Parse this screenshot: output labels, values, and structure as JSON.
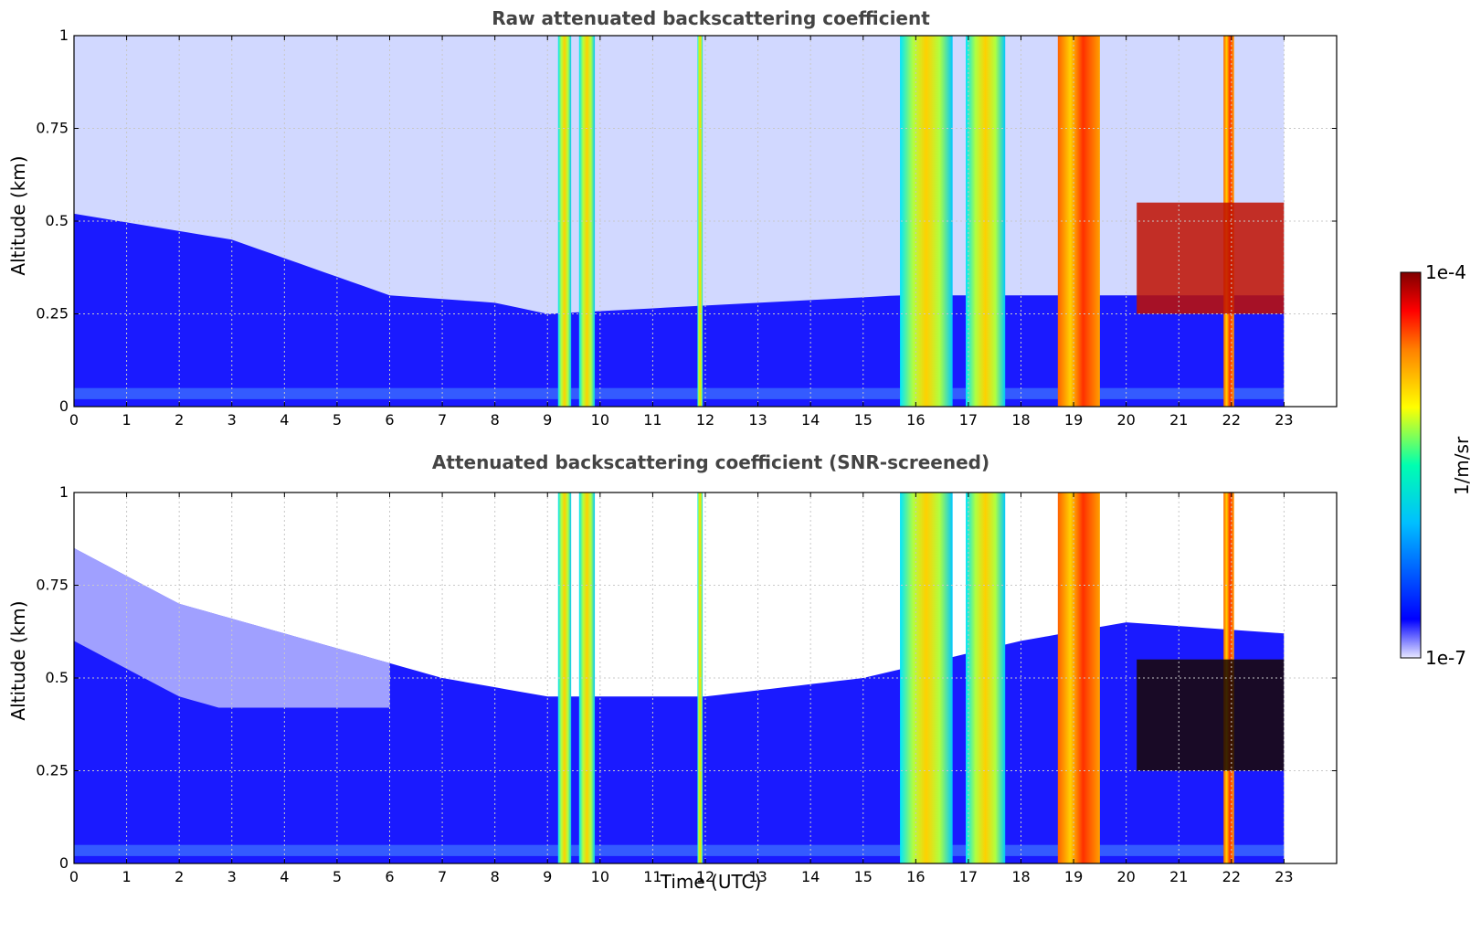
{
  "chart_data": [
    {
      "type": "heatmap",
      "title": "Raw attenuated backscattering coefficient",
      "ylabel": "Altitude (km)",
      "xlabel": "",
      "x_ticks": [
        "0",
        "1",
        "2",
        "3",
        "4",
        "5",
        "6",
        "7",
        "8",
        "9",
        "10",
        "11",
        "12",
        "13",
        "14",
        "15",
        "16",
        "17",
        "18",
        "19",
        "20",
        "21",
        "22",
        "23"
      ],
      "xlim": [
        0,
        24
      ],
      "y_ticks": [
        "0",
        "0.25",
        "0.5",
        "0.75",
        "1"
      ],
      "ylim": [
        0,
        1
      ],
      "data_end_hour": 23,
      "grid": true,
      "boundary_layer_top_km": [
        {
          "t": 0,
          "z": 0.52
        },
        {
          "t": 3,
          "z": 0.45
        },
        {
          "t": 6,
          "z": 0.3
        },
        {
          "t": 8,
          "z": 0.28
        },
        {
          "t": 9,
          "z": 0.25
        },
        {
          "t": 15.7,
          "z": 0.3
        }
      ],
      "cloud_bands": [
        {
          "t0": 9.2,
          "t1": 9.45,
          "level": "high"
        },
        {
          "t0": 9.6,
          "t1": 9.9,
          "level": "high"
        },
        {
          "t0": 11.85,
          "t1": 11.95,
          "level": "high"
        },
        {
          "t0": 15.7,
          "t1": 16.7,
          "level": "high"
        },
        {
          "t0": 16.95,
          "t1": 17.7,
          "level": "high"
        },
        {
          "t0": 18.7,
          "t1": 19.5,
          "level": "very high"
        },
        {
          "t0": 21.85,
          "t1": 22.05,
          "level": "very high"
        }
      ],
      "aerosol_layer": {
        "t0": 20.2,
        "t1": 23,
        "z0": 0.25,
        "z1": 0.55,
        "level": "very high"
      }
    },
    {
      "type": "heatmap",
      "title": "Attenuated backscattering coefficient (SNR-screened)",
      "ylabel": "Altitude (km)",
      "xlabel": "Time (UTC)",
      "x_ticks": [
        "0",
        "1",
        "2",
        "3",
        "4",
        "5",
        "6",
        "7",
        "8",
        "9",
        "10",
        "11",
        "12",
        "13",
        "14",
        "15",
        "16",
        "17",
        "18",
        "19",
        "20",
        "21",
        "22",
        "23"
      ],
      "xlim": [
        0,
        24
      ],
      "y_ticks": [
        "0",
        "0.25",
        "0.5",
        "0.75",
        "1"
      ],
      "ylim": [
        0,
        1
      ],
      "data_end_hour": 23,
      "grid": true,
      "screened_top_km": [
        {
          "t": 0,
          "z": 0.85
        },
        {
          "t": 2,
          "z": 0.7
        },
        {
          "t": 4,
          "z": 0.62
        },
        {
          "t": 7,
          "z": 0.5
        },
        {
          "t": 9,
          "z": 0.45
        },
        {
          "t": 12,
          "z": 0.45
        },
        {
          "t": 15,
          "z": 0.5
        },
        {
          "t": 18,
          "z": 0.6
        },
        {
          "t": 20,
          "z": 0.65
        },
        {
          "t": 23,
          "z": 0.62
        }
      ],
      "cloud_bands": [
        {
          "t0": 9.2,
          "t1": 9.45,
          "level": "high"
        },
        {
          "t0": 9.6,
          "t1": 9.9,
          "level": "high"
        },
        {
          "t0": 11.85,
          "t1": 11.95,
          "level": "high"
        },
        {
          "t0": 15.7,
          "t1": 16.7,
          "level": "high"
        },
        {
          "t0": 16.95,
          "t1": 17.7,
          "level": "high"
        },
        {
          "t0": 18.7,
          "t1": 19.5,
          "level": "very high"
        },
        {
          "t0": 21.85,
          "t1": 22.05,
          "level": "very high"
        }
      ],
      "aerosol_layer": {
        "t0": 20.2,
        "t1": 23,
        "z0": 0.25,
        "z1": 0.55,
        "level": "saturated"
      }
    }
  ],
  "colorbar": {
    "min_label": "1e-7",
    "max_label": "1e-4",
    "label": "1/m/sr",
    "colors": [
      "#e8e8ff",
      "#0000ff",
      "#00bfff",
      "#00ffb0",
      "#ffff00",
      "#ff8000",
      "#ff0000",
      "#800000"
    ]
  }
}
